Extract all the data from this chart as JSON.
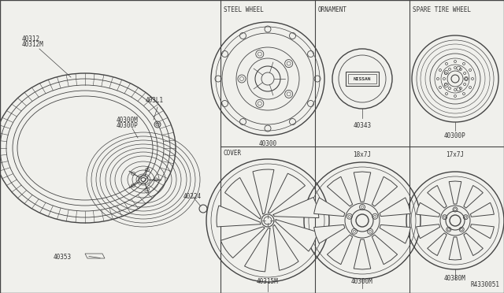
{
  "bg_color": "#f0f0ec",
  "line_color": "#444444",
  "text_color": "#333333",
  "ref_number": "R4330051",
  "labels": {
    "steel_wheel": "STEEL WHEEL",
    "ornament": "ORNAMENT",
    "spare_tire": "SPARE TIRE WHEEL",
    "cover": "COVER",
    "p40312": "40312",
    "p40312m": "40312M",
    "p40311": "403L1",
    "p40300m": "40300M",
    "p40300p_label": "40300P",
    "p40224": "40224",
    "p40353": "40353",
    "p40300": "40300",
    "p40343": "40343",
    "p40300p": "40300P",
    "p40315m": "40315M",
    "p40300m2": "40300M",
    "p40380m": "40380M",
    "size18": "18x7J",
    "size17": "17x7J"
  }
}
